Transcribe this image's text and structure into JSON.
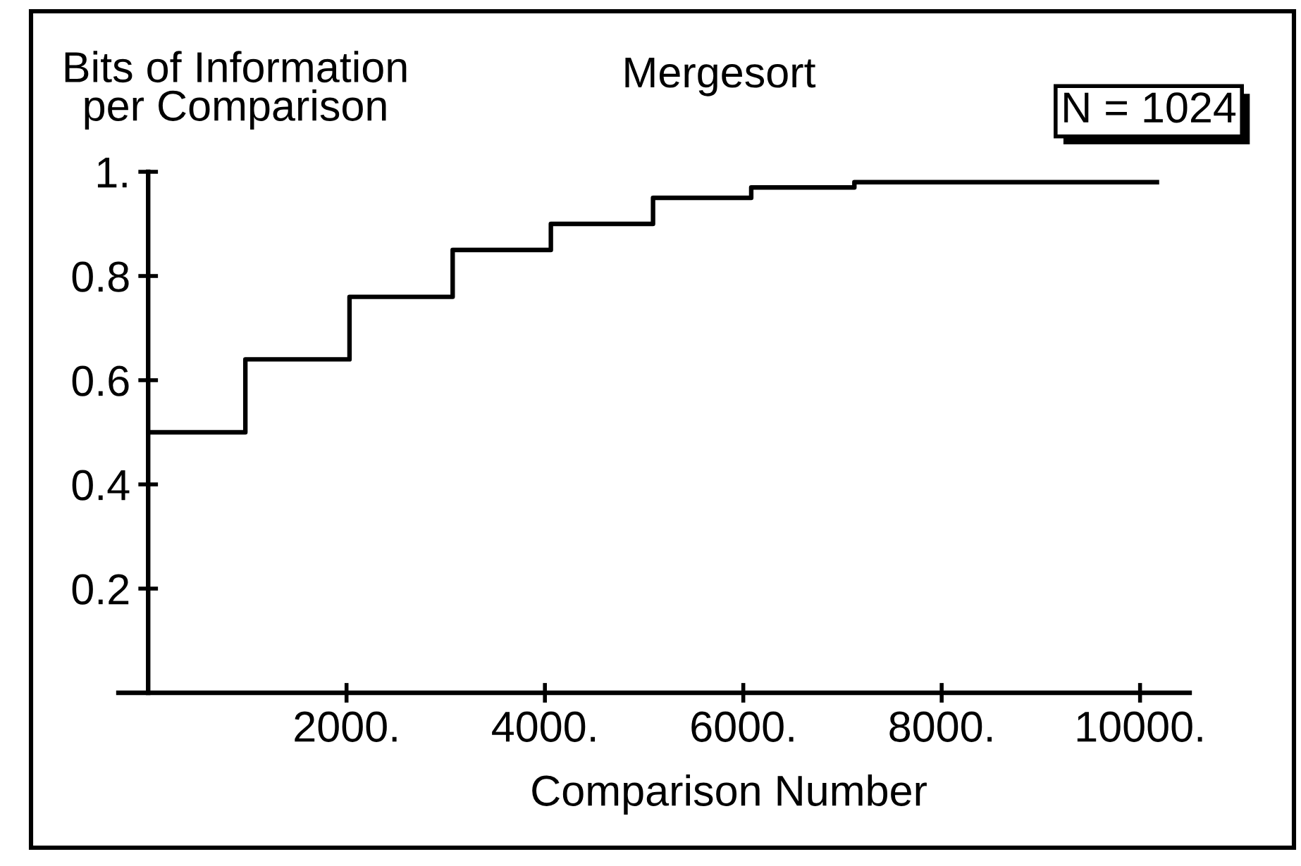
{
  "chart_data": {
    "type": "step",
    "title": "Mergesort",
    "ylabel": "Bits of Information\nper Comparison",
    "xlabel": "Comparison Number",
    "annotations": [
      "N = 1024"
    ],
    "x": [
      0,
      980,
      2030,
      3070,
      4060,
      5090,
      6080,
      7120,
      8140,
      9130,
      10170
    ],
    "series": [
      {
        "color": "#000000",
        "values": [
          0.5,
          0.64,
          0.76,
          0.85,
          0.9,
          0.95,
          0.97,
          0.98,
          0.98,
          0.98,
          0.98
        ]
      }
    ],
    "xlim": [
      -300,
      10500
    ],
    "ylim": [
      0,
      1
    ],
    "xticks": [
      {
        "value": 2000,
        "label": "2000."
      },
      {
        "value": 4000,
        "label": "4000."
      },
      {
        "value": 6000,
        "label": "6000."
      },
      {
        "value": 8000,
        "label": "8000."
      },
      {
        "value": 10000,
        "label": "10000."
      }
    ],
    "yticks": [
      0.2,
      0.4,
      0.6,
      0.8,
      {
        "value": 1,
        "label": "1."
      }
    ],
    "grid": false,
    "marker": "none",
    "line_style": "solid"
  }
}
